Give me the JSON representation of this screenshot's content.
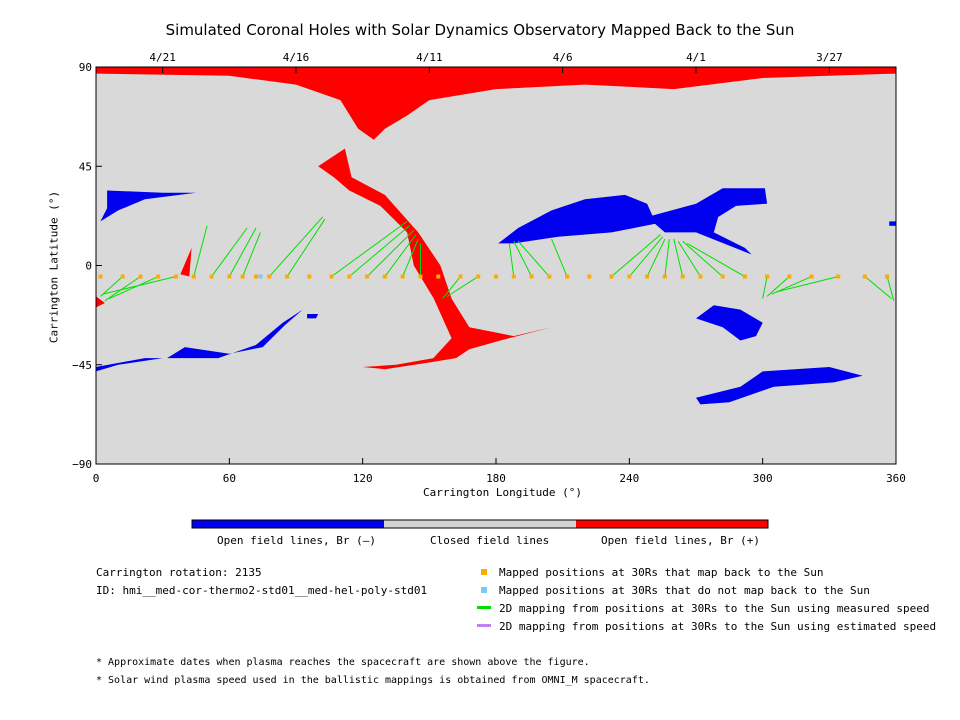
{
  "title": "Simulated Coronal Holes with Solar Dynamics Observatory Mapped Back to the Sun",
  "chart_data": {
    "type": "map",
    "xlabel": "Carrington Longitude (°)",
    "ylabel": "Carrington Latitude (°)",
    "xlim": [
      0,
      360
    ],
    "ylim": [
      -90,
      90
    ],
    "x_ticks": [
      0,
      60,
      120,
      180,
      240,
      300,
      360
    ],
    "y_ticks": [
      -90,
      -45,
      0,
      45,
      90
    ],
    "top_axis_dates": [
      {
        "label": "4/21",
        "lon": 30
      },
      {
        "label": "4/16",
        "lon": 90
      },
      {
        "label": "4/11",
        "lon": 150
      },
      {
        "label": "4/6",
        "lon": 210
      },
      {
        "label": "4/1",
        "lon": 270
      },
      {
        "label": "3/27",
        "lon": 330
      }
    ],
    "background": "#d9d9d9",
    "colors": {
      "open_negative": "#0000ee",
      "closed": "#d3d3d3",
      "open_positive": "#ff0000",
      "mapped_back": "#ffaa00",
      "not_mapped": "#7ec8f4",
      "measured_speed": "#00e000",
      "estimated_speed": "#c080f0"
    },
    "regions": [
      {
        "polarity": "positive",
        "lonlat": [
          [
            0,
            90
          ],
          [
            360,
            90
          ],
          [
            360,
            87
          ],
          [
            330,
            86
          ],
          [
            300,
            85
          ],
          [
            260,
            80
          ],
          [
            220,
            82
          ],
          [
            180,
            80
          ],
          [
            150,
            75
          ],
          [
            140,
            68
          ],
          [
            130,
            62
          ],
          [
            125,
            57
          ],
          [
            118,
            62
          ],
          [
            110,
            75
          ],
          [
            90,
            82
          ],
          [
            60,
            86
          ],
          [
            0,
            87
          ]
        ]
      },
      {
        "polarity": "positive",
        "lonlat": [
          [
            100,
            45
          ],
          [
            112,
            53
          ],
          [
            115,
            40
          ],
          [
            130,
            32
          ],
          [
            145,
            15
          ],
          [
            155,
            0
          ],
          [
            160,
            -15
          ],
          [
            168,
            -28
          ],
          [
            188,
            -32
          ],
          [
            205,
            -28
          ],
          [
            182,
            -34
          ],
          [
            168,
            -38
          ],
          [
            162,
            -42
          ],
          [
            150,
            -44
          ],
          [
            160,
            -33
          ],
          [
            152,
            -15
          ],
          [
            143,
            0
          ],
          [
            140,
            15
          ],
          [
            128,
            27
          ],
          [
            114,
            34
          ],
          [
            107,
            40
          ]
        ]
      },
      {
        "polarity": "positive",
        "lonlat": [
          [
            120,
            -46
          ],
          [
            135,
            -45
          ],
          [
            152,
            -42
          ],
          [
            162,
            -38
          ],
          [
            150,
            -44
          ],
          [
            130,
            -47
          ]
        ]
      },
      {
        "polarity": "positive",
        "lonlat": [
          [
            42,
            -5
          ],
          [
            43,
            8
          ],
          [
            38,
            -4
          ]
        ]
      },
      {
        "polarity": "positive",
        "lonlat": [
          [
            0,
            -14
          ],
          [
            4,
            -17
          ],
          [
            0,
            -19
          ]
        ]
      },
      {
        "polarity": "negative",
        "lonlat": [
          [
            5,
            34
          ],
          [
            30,
            33
          ],
          [
            45,
            33
          ],
          [
            22,
            30
          ],
          [
            10,
            25
          ],
          [
            2,
            20
          ],
          [
            5,
            26
          ]
        ]
      },
      {
        "polarity": "negative",
        "lonlat": [
          [
            0,
            -46
          ],
          [
            22,
            -42
          ],
          [
            32,
            -42
          ],
          [
            40,
            -37
          ],
          [
            60,
            -40
          ],
          [
            75,
            -37
          ],
          [
            85,
            -27
          ],
          [
            93,
            -20
          ],
          [
            84,
            -26
          ],
          [
            72,
            -36
          ],
          [
            55,
            -42
          ],
          [
            30,
            -42
          ],
          [
            10,
            -45
          ],
          [
            0,
            -48
          ]
        ]
      },
      {
        "polarity": "negative",
        "lonlat": [
          [
            181,
            10
          ],
          [
            190,
            17
          ],
          [
            205,
            25
          ],
          [
            220,
            30
          ],
          [
            238,
            32
          ],
          [
            248,
            28
          ],
          [
            252,
            19
          ],
          [
            232,
            15
          ],
          [
            208,
            13
          ],
          [
            188,
            10
          ]
        ]
      },
      {
        "polarity": "negative",
        "lonlat": [
          [
            248,
            22
          ],
          [
            270,
            28
          ],
          [
            282,
            35
          ],
          [
            288,
            35
          ],
          [
            297,
            35
          ],
          [
            301,
            35
          ],
          [
            302,
            28
          ],
          [
            288,
            27
          ],
          [
            280,
            22
          ],
          [
            278,
            15
          ],
          [
            292,
            8
          ],
          [
            295,
            5
          ],
          [
            270,
            15
          ],
          [
            256,
            15
          ]
        ]
      },
      {
        "polarity": "negative",
        "lonlat": [
          [
            270,
            -24
          ],
          [
            282,
            -28
          ],
          [
            290,
            -34
          ],
          [
            297,
            -32
          ],
          [
            300,
            -26
          ],
          [
            290,
            -20
          ],
          [
            278,
            -18
          ]
        ]
      },
      {
        "polarity": "negative",
        "lonlat": [
          [
            270,
            -60
          ],
          [
            290,
            -55
          ],
          [
            300,
            -48
          ],
          [
            330,
            -46
          ],
          [
            345,
            -50
          ],
          [
            332,
            -53
          ],
          [
            305,
            -55
          ],
          [
            285,
            -62
          ],
          [
            272,
            -63
          ]
        ]
      },
      {
        "polarity": "negative",
        "lonlat": [
          [
            95,
            -22
          ],
          [
            100,
            -22
          ],
          [
            99,
            -24
          ],
          [
            95,
            -24
          ]
        ]
      },
      {
        "polarity": "negative",
        "lonlat": [
          [
            357,
            20
          ],
          [
            360,
            20
          ],
          [
            360,
            18
          ],
          [
            357,
            18
          ]
        ]
      }
    ],
    "mapped_points": [
      {
        "lon": 2,
        "lat": -5
      },
      {
        "lon": 12,
        "lat": -5
      },
      {
        "lon": 20,
        "lat": -5
      },
      {
        "lon": 28,
        "lat": -5
      },
      {
        "lon": 36,
        "lat": -5
      },
      {
        "lon": 44,
        "lat": -5
      },
      {
        "lon": 52,
        "lat": -5
      },
      {
        "lon": 60,
        "lat": -5
      },
      {
        "lon": 66,
        "lat": -5
      },
      {
        "lon": 72,
        "lat": -5
      },
      {
        "lon": 78,
        "lat": -5
      },
      {
        "lon": 86,
        "lat": -5
      },
      {
        "lon": 96,
        "lat": -5
      },
      {
        "lon": 106,
        "lat": -5
      },
      {
        "lon": 114,
        "lat": -5
      },
      {
        "lon": 122,
        "lat": -5
      },
      {
        "lon": 130,
        "lat": -5
      },
      {
        "lon": 138,
        "lat": -5
      },
      {
        "lon": 146,
        "lat": -5
      },
      {
        "lon": 154,
        "lat": -5
      },
      {
        "lon": 164,
        "lat": -5
      },
      {
        "lon": 172,
        "lat": -5
      },
      {
        "lon": 180,
        "lat": -5
      },
      {
        "lon": 188,
        "lat": -5
      },
      {
        "lon": 196,
        "lat": -5
      },
      {
        "lon": 204,
        "lat": -5
      },
      {
        "lon": 212,
        "lat": -5
      },
      {
        "lon": 222,
        "lat": -5
      },
      {
        "lon": 232,
        "lat": -5
      },
      {
        "lon": 240,
        "lat": -5
      },
      {
        "lon": 248,
        "lat": -5
      },
      {
        "lon": 256,
        "lat": -5
      },
      {
        "lon": 264,
        "lat": -5
      },
      {
        "lon": 272,
        "lat": -5
      },
      {
        "lon": 282,
        "lat": -5
      },
      {
        "lon": 292,
        "lat": -5
      },
      {
        "lon": 302,
        "lat": -5
      },
      {
        "lon": 312,
        "lat": -5
      },
      {
        "lon": 322,
        "lat": -5
      },
      {
        "lon": 334,
        "lat": -5
      },
      {
        "lon": 346,
        "lat": -5
      },
      {
        "lon": 356,
        "lat": -5
      }
    ],
    "unmapped_points": [
      {
        "lon": 74,
        "lat": -5
      }
    ],
    "measured_mappings": [
      {
        "from": [
          12,
          -5
        ],
        "to": [
          2,
          -14
        ]
      },
      {
        "from": [
          20,
          -5
        ],
        "to": [
          4,
          -16
        ]
      },
      {
        "from": [
          28,
          -5
        ],
        "to": [
          6,
          -15
        ]
      },
      {
        "from": [
          36,
          -5
        ],
        "to": [
          3,
          -13
        ]
      },
      {
        "from": [
          44,
          -5
        ],
        "to": [
          50,
          18
        ]
      },
      {
        "from": [
          52,
          -5
        ],
        "to": [
          68,
          17
        ]
      },
      {
        "from": [
          60,
          -5
        ],
        "to": [
          72,
          17
        ]
      },
      {
        "from": [
          66,
          -5
        ],
        "to": [
          74,
          15
        ]
      },
      {
        "from": [
          78,
          -5
        ],
        "to": [
          102,
          22
        ]
      },
      {
        "from": [
          86,
          -5
        ],
        "to": [
          103,
          21
        ]
      },
      {
        "from": [
          106,
          -5
        ],
        "to": [
          140,
          20
        ]
      },
      {
        "from": [
          114,
          -5
        ],
        "to": [
          141,
          18
        ]
      },
      {
        "from": [
          122,
          -5
        ],
        "to": [
          143,
          16
        ]
      },
      {
        "from": [
          130,
          -5
        ],
        "to": [
          144,
          14
        ]
      },
      {
        "from": [
          138,
          -5
        ],
        "to": [
          145,
          12
        ]
      },
      {
        "from": [
          146,
          -5
        ],
        "to": [
          146,
          10
        ]
      },
      {
        "from": [
          164,
          -5
        ],
        "to": [
          156,
          -15
        ]
      },
      {
        "from": [
          172,
          -5
        ],
        "to": [
          158,
          -14
        ]
      },
      {
        "from": [
          188,
          -5
        ],
        "to": [
          186,
          10
        ]
      },
      {
        "from": [
          196,
          -5
        ],
        "to": [
          188,
          11
        ]
      },
      {
        "from": [
          204,
          -5
        ],
        "to": [
          190,
          11
        ]
      },
      {
        "from": [
          212,
          -5
        ],
        "to": [
          205,
          12
        ]
      },
      {
        "from": [
          232,
          -5
        ],
        "to": [
          254,
          14
        ]
      },
      {
        "from": [
          240,
          -5
        ],
        "to": [
          255,
          13
        ]
      },
      {
        "from": [
          248,
          -5
        ],
        "to": [
          256,
          12
        ]
      },
      {
        "from": [
          256,
          -5
        ],
        "to": [
          258,
          12
        ]
      },
      {
        "from": [
          264,
          -5
        ],
        "to": [
          260,
          12
        ]
      },
      {
        "from": [
          272,
          -5
        ],
        "to": [
          262,
          11
        ]
      },
      {
        "from": [
          282,
          -5
        ],
        "to": [
          264,
          11
        ]
      },
      {
        "from": [
          292,
          -5
        ],
        "to": [
          266,
          10
        ]
      },
      {
        "from": [
          302,
          -5
        ],
        "to": [
          300,
          -15
        ]
      },
      {
        "from": [
          312,
          -5
        ],
        "to": [
          302,
          -14
        ]
      },
      {
        "from": [
          322,
          -5
        ],
        "to": [
          304,
          -13
        ]
      },
      {
        "from": [
          334,
          -5
        ],
        "to": [
          306,
          -12
        ]
      },
      {
        "from": [
          346,
          -5
        ],
        "to": [
          358,
          -15
        ]
      },
      {
        "from": [
          356,
          -5
        ],
        "to": [
          359,
          -16
        ]
      }
    ]
  },
  "colorbar": {
    "labels": [
      "Open field lines, Br (–)",
      "Closed field lines",
      "Open field lines, Br (+)"
    ]
  },
  "info": {
    "rotation": "Carrington rotation: 2135",
    "id": "ID: hmi__med-cor-thermo2-std01__med-hel-poly-std01"
  },
  "legend": [
    {
      "kind": "square",
      "color": "#ffaa00",
      "label": "Mapped positions at 30Rs that map back to the Sun"
    },
    {
      "kind": "square",
      "color": "#7ec8f4",
      "label": "Mapped positions at 30Rs that do not map back to the Sun"
    },
    {
      "kind": "line",
      "color": "#00e000",
      "label": "2D mapping from positions at 30Rs to the Sun using measured speed"
    },
    {
      "kind": "line",
      "color": "#c080f0",
      "label": "2D mapping from positions at 30Rs to the Sun using estimated speed"
    }
  ],
  "footnotes": [
    "* Approximate dates when plasma reaches the spacecraft are shown above the figure.",
    "* Solar wind plasma speed used in the ballistic mappings is obtained from OMNI_M spacecraft."
  ]
}
